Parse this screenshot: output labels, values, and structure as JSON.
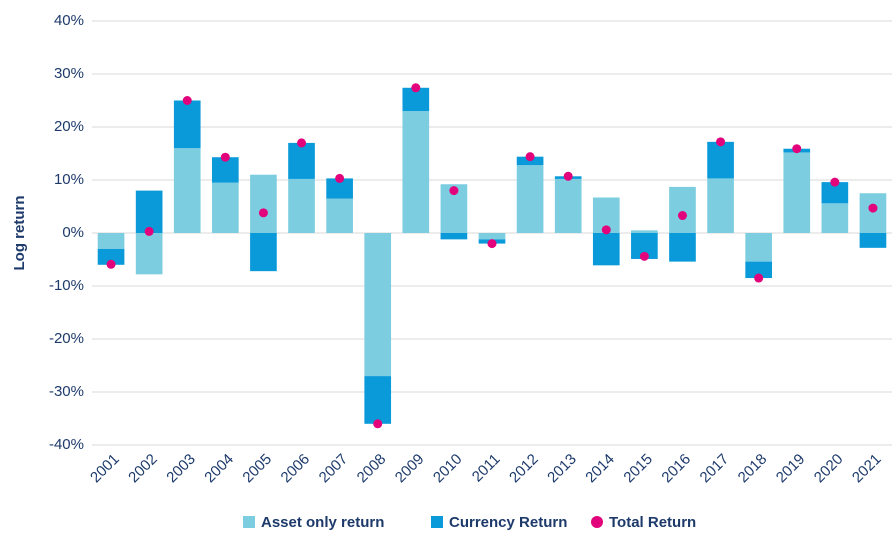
{
  "chart_data": {
    "type": "stacked_bar_dot",
    "y_label": "Log return",
    "categories": [
      "2001",
      "2002",
      "2003",
      "2004",
      "2005",
      "2006",
      "2007",
      "2008",
      "2009",
      "2010",
      "2011",
      "2012",
      "2013",
      "2014",
      "2015",
      "2016",
      "2017",
      "2018",
      "2019",
      "2020",
      "2021"
    ],
    "series": [
      {
        "name": "Asset only return",
        "color": "#7ccde0",
        "kind": "bar",
        "values": [
          -3,
          -7.8,
          16,
          9.5,
          11,
          10.2,
          6.5,
          -27,
          23,
          9.2,
          -1.2,
          12.8,
          10.2,
          6.7,
          0.5,
          8.7,
          10.3,
          -5.4,
          15.2,
          5.6,
          7.5
        ]
      },
      {
        "name": "Currency Return",
        "color": "#0a9ad9",
        "kind": "bar",
        "values": [
          -3,
          8,
          9,
          4.8,
          -7.2,
          6.8,
          3.8,
          -9,
          4.4,
          -1.2,
          -0.8,
          1.6,
          0.5,
          -6.1,
          -4.9,
          -5.4,
          6.9,
          -3.1,
          0.7,
          4.0,
          -2.8
        ]
      },
      {
        "name": "Total Return",
        "color": "#e2037c",
        "kind": "dot",
        "values": [
          -5.9,
          0.3,
          25,
          14.3,
          3.8,
          17,
          10.3,
          -36,
          27.4,
          8,
          -2,
          14.4,
          10.7,
          0.6,
          -4.4,
          3.3,
          17.2,
          -8.5,
          15.9,
          9.6,
          4.7
        ]
      }
    ],
    "ylim": [
      -40,
      40
    ],
    "yticks": [
      {
        "value": -40,
        "label": "-40%"
      },
      {
        "value": -30,
        "label": "-30%"
      },
      {
        "value": -20,
        "label": "-20%"
      },
      {
        "value": -10,
        "label": "-10%"
      },
      {
        "value": 0,
        "label": "0%"
      },
      {
        "value": 10,
        "label": "10%"
      },
      {
        "value": 20,
        "label": "20%"
      },
      {
        "value": 30,
        "label": "30%"
      },
      {
        "value": 40,
        "label": "40%"
      }
    ],
    "grid": true,
    "legend": "bottom"
  }
}
